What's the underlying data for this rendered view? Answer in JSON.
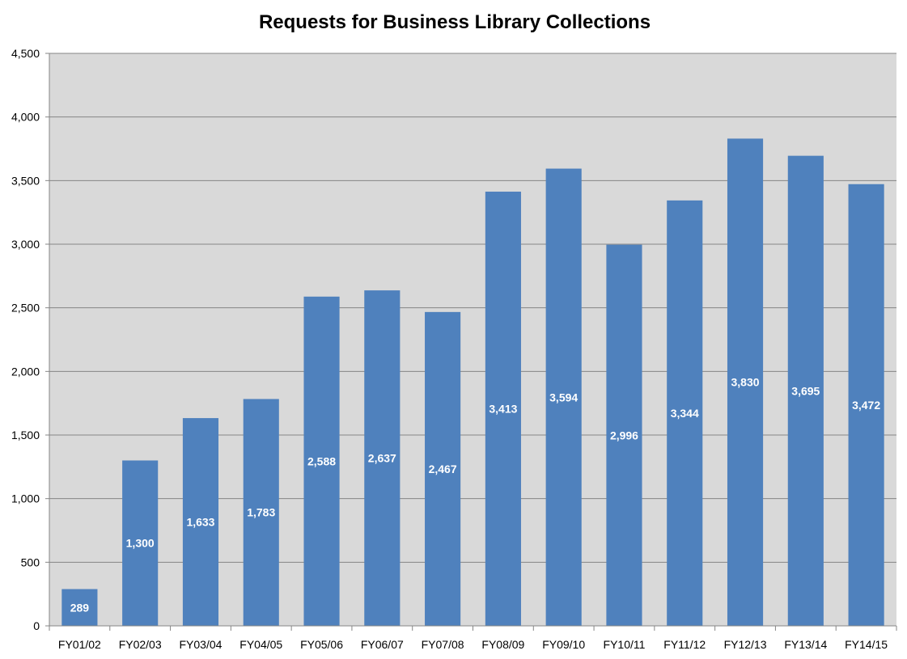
{
  "chart_data": {
    "type": "bar",
    "title": "Requests for Business Library Collections",
    "xlabel": "",
    "ylabel": "",
    "categories": [
      "FY01/02",
      "FY02/03",
      "FY03/04",
      "FY04/05",
      "FY05/06",
      "FY06/07",
      "FY07/08",
      "FY08/09",
      "FY09/10",
      "FY10/11",
      "FY11/12",
      "FY12/13",
      "FY13/14",
      "FY14/15"
    ],
    "values": [
      289,
      1300,
      1633,
      1783,
      2588,
      2637,
      2467,
      3413,
      3594,
      2996,
      3344,
      3830,
      3695,
      3472
    ],
    "data_labels": [
      "289",
      "1,300",
      "1,633",
      "1,783",
      "2,588",
      "2,637",
      "2,467",
      "3,413",
      "3,594",
      "2,996",
      "3,344",
      "3,830",
      "3,695",
      "3,472"
    ],
    "ylim": [
      0,
      4500
    ],
    "yticks": [
      "0",
      "500",
      "1,000",
      "1,500",
      "2,000",
      "2,500",
      "3,000",
      "3,500",
      "4,000",
      "4,500"
    ],
    "grid": true,
    "legend": "none",
    "colors": {
      "bar": "#4f81bd",
      "plot_background": "#d9d9d9",
      "gridline": "#868686"
    }
  }
}
